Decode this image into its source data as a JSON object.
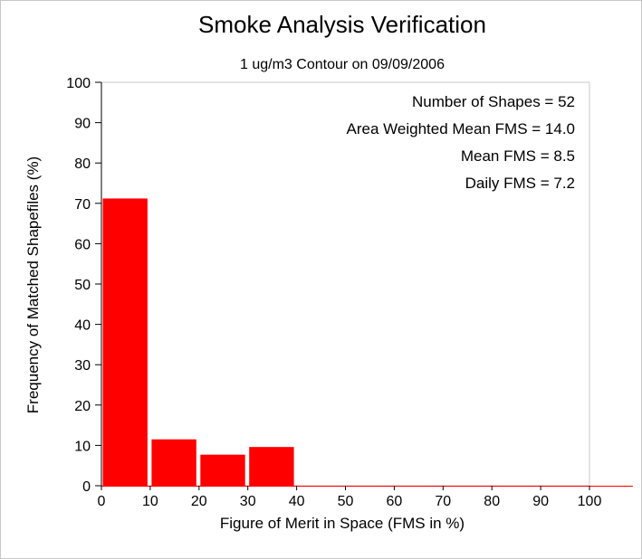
{
  "chart_data": {
    "type": "bar",
    "title": "Smoke Analysis Verification",
    "subtitle": "1 ug/m3 Contour on 09/09/2006",
    "xlabel": "Figure of Merit in Space (FMS in %)",
    "ylabel": "Frequency of Matched Shapefiles (%)",
    "xlim": [
      0,
      100
    ],
    "ylim": [
      0,
      100
    ],
    "x_ticks": [
      "0",
      "10",
      "20",
      "30",
      "40",
      "50",
      "60",
      "70",
      "80",
      "90",
      "100"
    ],
    "y_ticks": [
      "0",
      "10",
      "20",
      "30",
      "40",
      "50",
      "60",
      "70",
      "80",
      "90",
      "100"
    ],
    "bin_width": 10,
    "bin_starts": [
      0,
      10,
      20,
      30,
      40,
      50,
      60,
      70,
      80,
      90
    ],
    "values": [
      71.2,
      11.5,
      7.7,
      9.6,
      0,
      0,
      0,
      0,
      0,
      0
    ],
    "grid": false,
    "bar_color": "#ff0000",
    "stats": [
      "Number of Shapes = 52",
      "Area Weighted Mean FMS = 14.0",
      "Mean FMS = 8.5",
      "Daily FMS = 7.2"
    ]
  }
}
